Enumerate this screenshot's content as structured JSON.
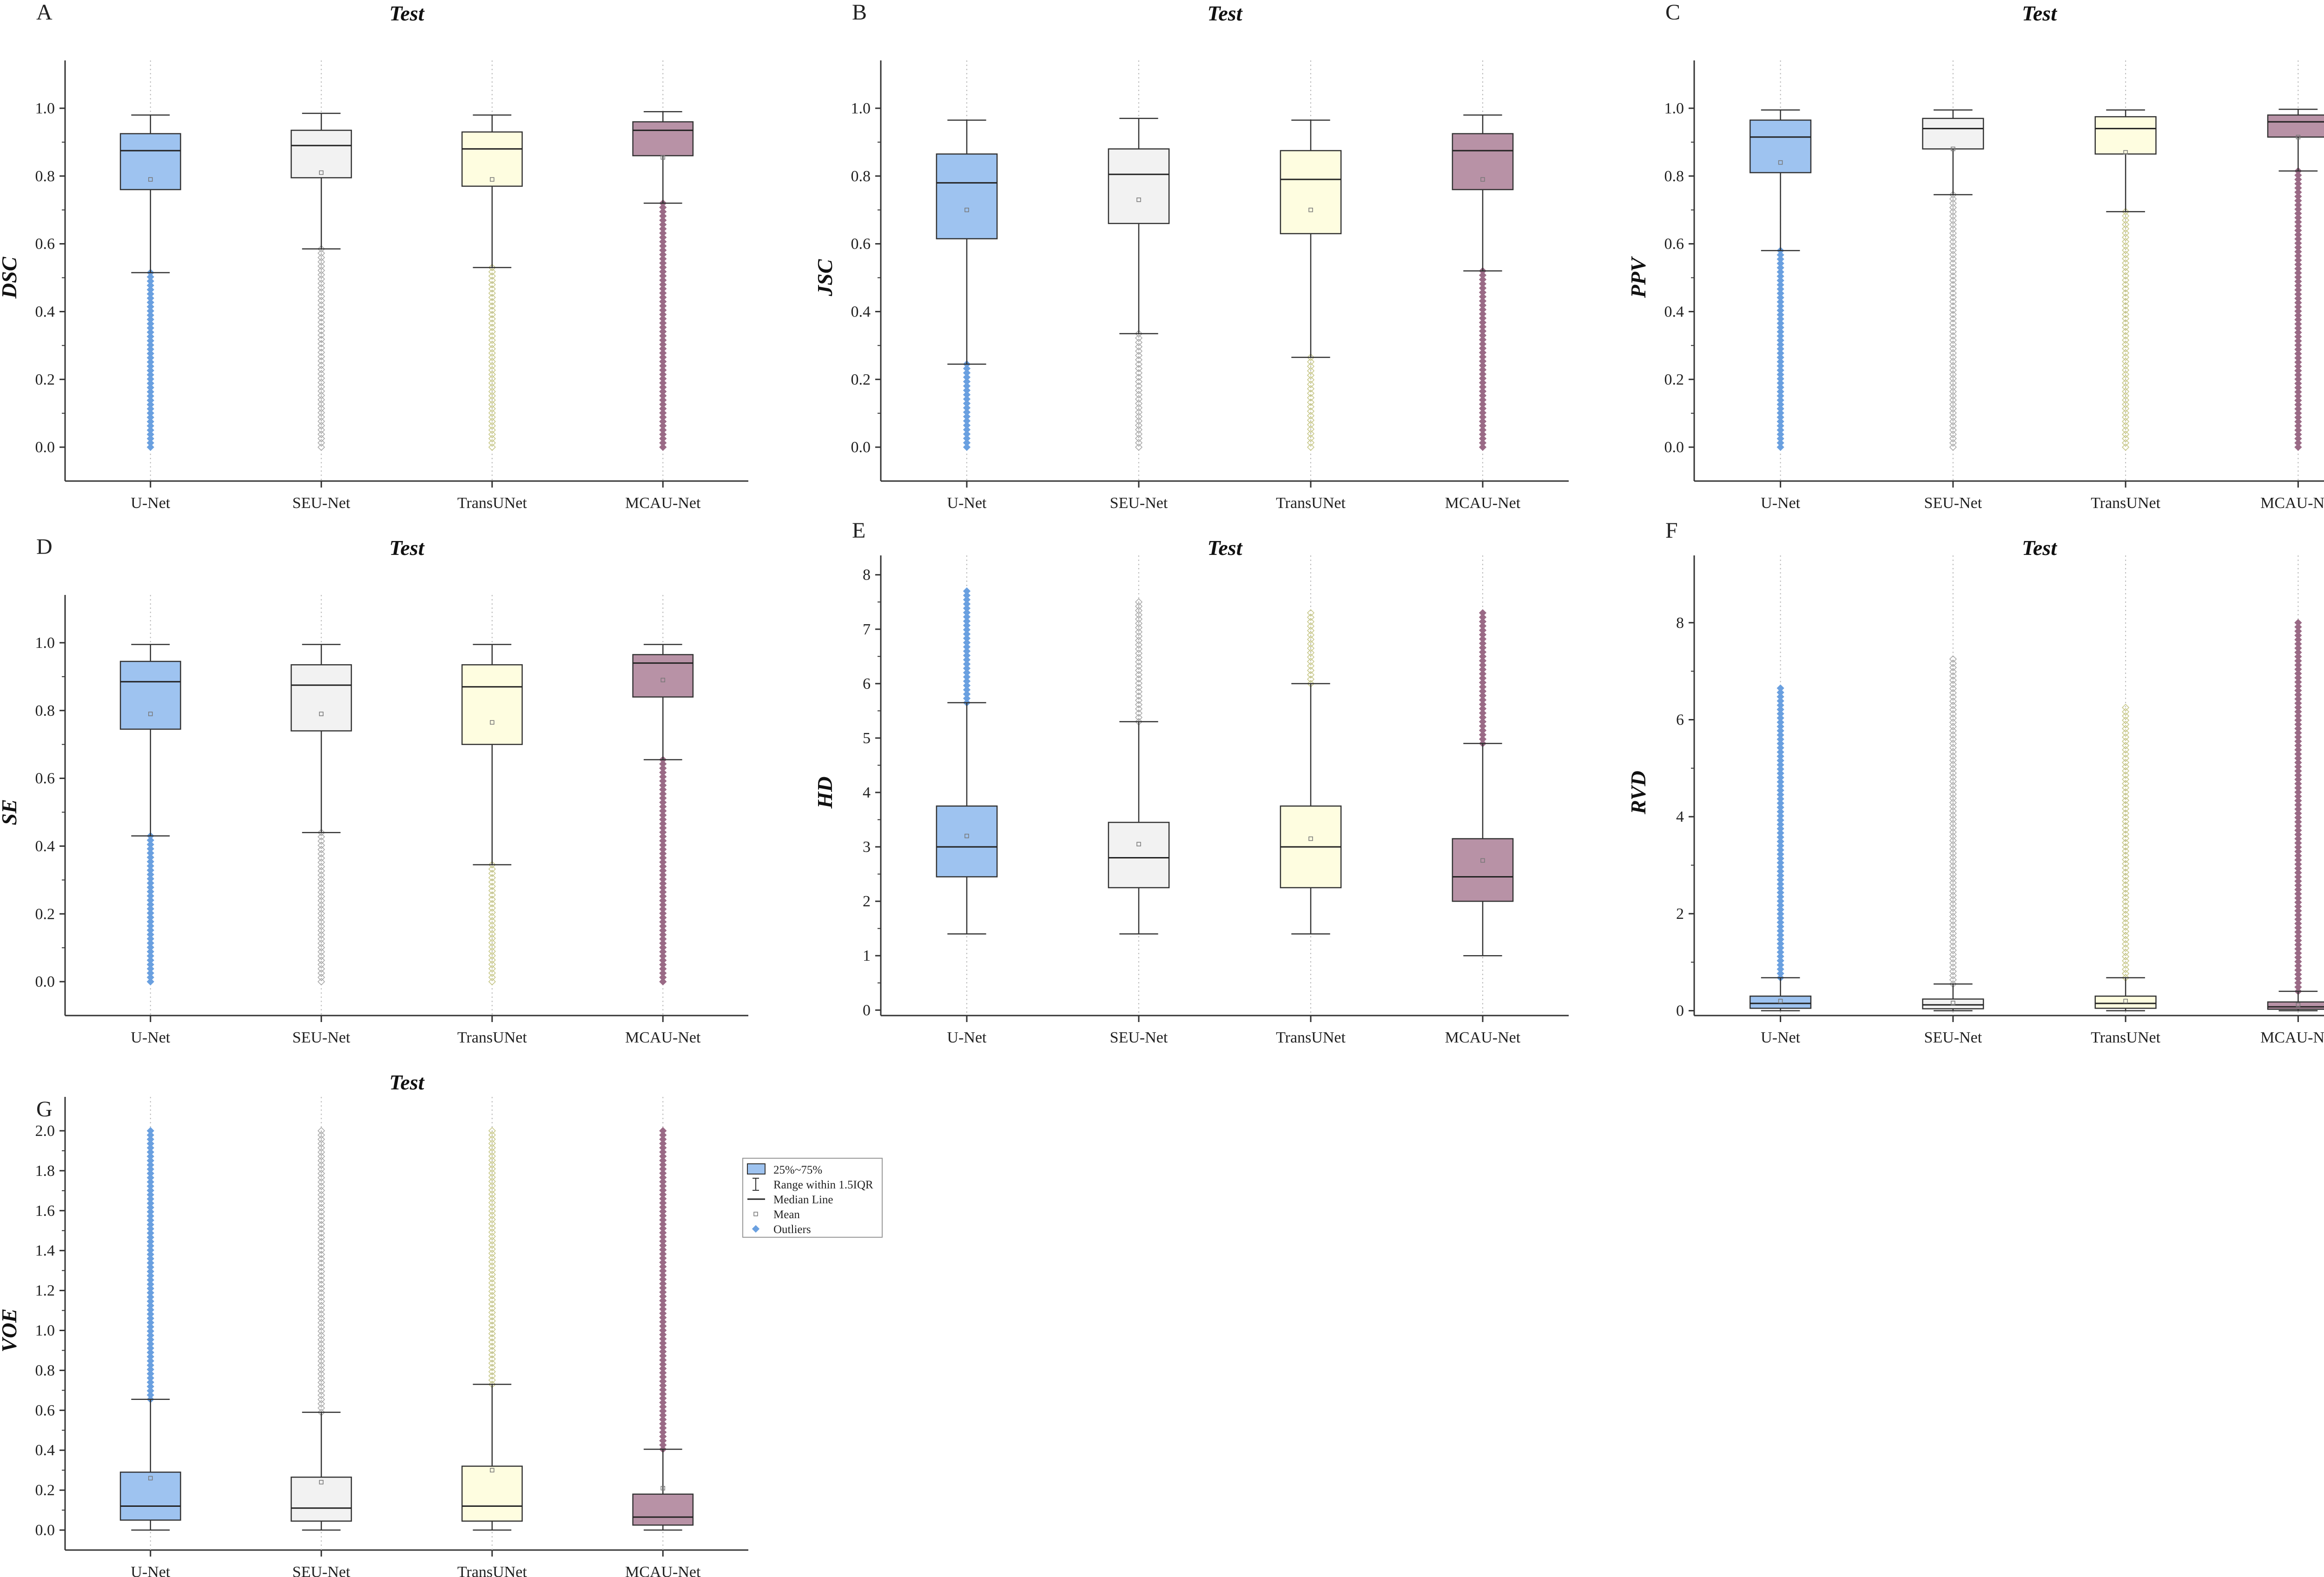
{
  "chart_data": [
    {
      "panel": "A",
      "type": "box",
      "title": "Test",
      "ylabel": "DSC",
      "ylim": [
        -0.1,
        1.1
      ],
      "yticks": [
        0.0,
        0.2,
        0.4,
        0.6,
        0.8,
        1.0
      ],
      "categories": [
        "U-Net",
        "SEU-Net",
        "TransUNet",
        "MCAU-Net"
      ],
      "boxes": [
        {
          "whisker_low": 0.515,
          "q1": 0.76,
          "median": 0.875,
          "q3": 0.925,
          "whisker_high": 0.98,
          "mean": 0.79,
          "outlier_range": [
            0.0,
            0.515
          ]
        },
        {
          "whisker_low": 0.585,
          "q1": 0.795,
          "median": 0.89,
          "q3": 0.935,
          "whisker_high": 0.985,
          "mean": 0.81,
          "outlier_range": [
            0.0,
            0.585
          ]
        },
        {
          "whisker_low": 0.53,
          "q1": 0.77,
          "median": 0.88,
          "q3": 0.93,
          "whisker_high": 0.98,
          "mean": 0.79,
          "outlier_range": [
            0.0,
            0.53
          ]
        },
        {
          "whisker_low": 0.72,
          "q1": 0.86,
          "median": 0.935,
          "q3": 0.96,
          "whisker_high": 0.99,
          "mean": 0.855,
          "outlier_range": [
            0.0,
            0.72
          ]
        }
      ]
    },
    {
      "panel": "B",
      "type": "box",
      "title": "Test",
      "ylabel": "JSC",
      "ylim": [
        -0.1,
        1.1
      ],
      "yticks": [
        0.0,
        0.2,
        0.4,
        0.6,
        0.8,
        1.0
      ],
      "categories": [
        "U-Net",
        "SEU-Net",
        "TransUNet",
        "MCAU-Net"
      ],
      "boxes": [
        {
          "whisker_low": 0.245,
          "q1": 0.615,
          "median": 0.78,
          "q3": 0.865,
          "whisker_high": 0.965,
          "mean": 0.7,
          "outlier_range": [
            0.0,
            0.245
          ]
        },
        {
          "whisker_low": 0.335,
          "q1": 0.66,
          "median": 0.805,
          "q3": 0.88,
          "whisker_high": 0.97,
          "mean": 0.73,
          "outlier_range": [
            0.0,
            0.335
          ]
        },
        {
          "whisker_low": 0.265,
          "q1": 0.63,
          "median": 0.79,
          "q3": 0.875,
          "whisker_high": 0.965,
          "mean": 0.7,
          "outlier_range": [
            0.0,
            0.265
          ]
        },
        {
          "whisker_low": 0.52,
          "q1": 0.76,
          "median": 0.875,
          "q3": 0.925,
          "whisker_high": 0.98,
          "mean": 0.79,
          "outlier_range": [
            0.0,
            0.52
          ]
        }
      ]
    },
    {
      "panel": "C",
      "type": "box",
      "title": "Test",
      "ylabel": "PPV",
      "ylim": [
        -0.1,
        1.1
      ],
      "yticks": [
        0.0,
        0.2,
        0.4,
        0.6,
        0.8,
        1.0
      ],
      "categories": [
        "U-Net",
        "SEU-Net",
        "TransUNet",
        "MCAU-Net"
      ],
      "boxes": [
        {
          "whisker_low": 0.58,
          "q1": 0.81,
          "median": 0.915,
          "q3": 0.965,
          "whisker_high": 0.995,
          "mean": 0.84,
          "outlier_range": [
            0.0,
            0.58
          ]
        },
        {
          "whisker_low": 0.745,
          "q1": 0.88,
          "median": 0.94,
          "q3": 0.97,
          "whisker_high": 0.995,
          "mean": 0.88,
          "outlier_range": [
            0.0,
            0.745
          ]
        },
        {
          "whisker_low": 0.695,
          "q1": 0.865,
          "median": 0.94,
          "q3": 0.975,
          "whisker_high": 0.995,
          "mean": 0.87,
          "outlier_range": [
            0.0,
            0.695
          ]
        },
        {
          "whisker_low": 0.815,
          "q1": 0.915,
          "median": 0.96,
          "q3": 0.98,
          "whisker_high": 0.997,
          "mean": 0.915,
          "outlier_range": [
            0.0,
            0.815
          ]
        }
      ]
    },
    {
      "panel": "D",
      "type": "box",
      "title": "Test",
      "ylabel": "SE",
      "ylim": [
        -0.1,
        1.1
      ],
      "yticks": [
        0.0,
        0.2,
        0.4,
        0.6,
        0.8,
        1.0
      ],
      "categories": [
        "U-Net",
        "SEU-Net",
        "TransUNet",
        "MCAU-Net"
      ],
      "boxes": [
        {
          "whisker_low": 0.43,
          "q1": 0.745,
          "median": 0.885,
          "q3": 0.945,
          "whisker_high": 0.995,
          "mean": 0.79,
          "outlier_range": [
            0.0,
            0.43
          ]
        },
        {
          "whisker_low": 0.44,
          "q1": 0.74,
          "median": 0.875,
          "q3": 0.935,
          "whisker_high": 0.995,
          "mean": 0.79,
          "outlier_range": [
            0.0,
            0.44
          ]
        },
        {
          "whisker_low": 0.345,
          "q1": 0.7,
          "median": 0.87,
          "q3": 0.935,
          "whisker_high": 0.995,
          "mean": 0.765,
          "outlier_range": [
            0.0,
            0.345
          ]
        },
        {
          "whisker_low": 0.655,
          "q1": 0.84,
          "median": 0.94,
          "q3": 0.965,
          "whisker_high": 0.995,
          "mean": 0.89,
          "outlier_range": [
            0.0,
            0.655
          ]
        }
      ]
    },
    {
      "panel": "E",
      "type": "box",
      "title": "Test",
      "ylabel": "HD",
      "ylim": [
        -0.1,
        8.1
      ],
      "yticks": [
        0,
        1,
        2,
        3,
        4,
        5,
        6,
        7,
        8
      ],
      "categories": [
        "U-Net",
        "SEU-Net",
        "TransUNet",
        "MCAU-Net"
      ],
      "boxes": [
        {
          "whisker_low": 1.4,
          "q1": 2.45,
          "median": 3.0,
          "q3": 3.75,
          "whisker_high": 5.65,
          "mean": 3.2,
          "outlier_range": [
            5.65,
            7.7
          ]
        },
        {
          "whisker_low": 1.4,
          "q1": 2.25,
          "median": 2.8,
          "q3": 3.45,
          "whisker_high": 5.3,
          "mean": 3.05,
          "outlier_range": [
            5.3,
            7.5
          ]
        },
        {
          "whisker_low": 1.4,
          "q1": 2.25,
          "median": 3.0,
          "q3": 3.75,
          "whisker_high": 6.0,
          "mean": 3.15,
          "outlier_range": [
            6.0,
            7.3
          ]
        },
        {
          "whisker_low": 1.0,
          "q1": 2.0,
          "median": 2.45,
          "q3": 3.15,
          "whisker_high": 4.9,
          "mean": 2.75,
          "outlier_range": [
            4.9,
            7.3
          ]
        }
      ]
    },
    {
      "panel": "F",
      "type": "box",
      "title": "Test",
      "ylabel": "RVD",
      "ylim": [
        -0.1,
        9.1
      ],
      "yticks": [
        0,
        2,
        4,
        6,
        8
      ],
      "categories": [
        "U-Net",
        "SEU-Net",
        "TransUNet",
        "MCAU-Net"
      ],
      "boxes": [
        {
          "whisker_low": 0.0,
          "q1": 0.05,
          "median": 0.15,
          "q3": 0.3,
          "whisker_high": 0.68,
          "mean": 0.2,
          "outlier_range": [
            0.68,
            6.65
          ]
        },
        {
          "whisker_low": 0.0,
          "q1": 0.04,
          "median": 0.12,
          "q3": 0.24,
          "whisker_high": 0.55,
          "mean": 0.16,
          "outlier_range": [
            0.55,
            7.25
          ]
        },
        {
          "whisker_low": 0.0,
          "q1": 0.05,
          "median": 0.15,
          "q3": 0.3,
          "whisker_high": 0.68,
          "mean": 0.2,
          "outlier_range": [
            0.68,
            6.25
          ]
        },
        {
          "whisker_low": 0.0,
          "q1": 0.03,
          "median": 0.08,
          "q3": 0.18,
          "whisker_high": 0.4,
          "mean": 0.12,
          "outlier_range": [
            0.4,
            8.0
          ]
        }
      ]
    },
    {
      "panel": "G",
      "type": "box",
      "title": "Test",
      "ylabel": "VOE",
      "ylim": [
        -0.1,
        2.1
      ],
      "yticks": [
        0.0,
        0.2,
        0.4,
        0.6,
        0.8,
        1.0,
        1.2,
        1.4,
        1.6,
        1.8,
        2.0
      ],
      "categories": [
        "U-Net",
        "SEU-Net",
        "TransUNet",
        "MCAU-Net"
      ],
      "boxes": [
        {
          "whisker_low": 0.0,
          "q1": 0.05,
          "median": 0.12,
          "q3": 0.29,
          "whisker_high": 0.655,
          "mean": 0.26,
          "outlier_range": [
            0.655,
            2.0
          ]
        },
        {
          "whisker_low": 0.0,
          "q1": 0.045,
          "median": 0.11,
          "q3": 0.265,
          "whisker_high": 0.59,
          "mean": 0.24,
          "outlier_range": [
            0.59,
            2.0
          ]
        },
        {
          "whisker_low": 0.0,
          "q1": 0.045,
          "median": 0.12,
          "q3": 0.32,
          "whisker_high": 0.73,
          "mean": 0.3,
          "outlier_range": [
            0.73,
            2.0
          ]
        },
        {
          "whisker_low": 0.0,
          "q1": 0.025,
          "median": 0.065,
          "q3": 0.18,
          "whisker_high": 0.405,
          "mean": 0.21,
          "outlier_range": [
            0.405,
            2.0
          ]
        }
      ]
    }
  ],
  "colors": {
    "U-Net": "#9ec3f0",
    "SEU-Net": "#f2f2f2",
    "TransUNet": "#fefde0",
    "MCAU-Net": "#b892a6",
    "outline": "#333333",
    "outliers": [
      "#6aa0e0",
      "#aaaaaa",
      "#c8c88a",
      "#9a6a86"
    ]
  },
  "legend": {
    "items": [
      {
        "label": "25%~75%",
        "symbol": "box"
      },
      {
        "label": "Range within 1.5IQR",
        "symbol": "whisker"
      },
      {
        "label": "Median Line",
        "symbol": "line"
      },
      {
        "label": "Mean",
        "symbol": "square"
      },
      {
        "label": "Outliers",
        "symbol": "diamond"
      }
    ]
  }
}
